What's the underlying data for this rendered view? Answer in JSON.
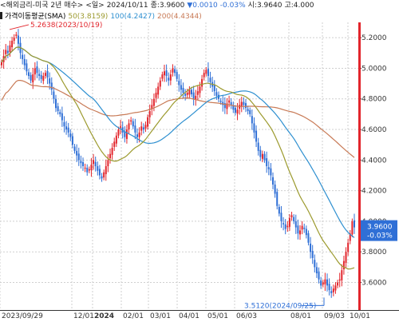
{
  "header": {
    "instrument": "<해외금리-미국 2년 매수>",
    "period": "<일>",
    "date": "2024/10/11",
    "close_label": "종:3.9600",
    "change": "▼0.0010",
    "change_pct": "-0.03%",
    "open_label": "시:3.9640",
    "high_label": "고:4.000"
  },
  "legend": {
    "title": "가격이동평균(SMA)",
    "ma50": "50(3.8159)",
    "ma100": "100(4.2427)",
    "ma200": "200(4.4344)"
  },
  "colors": {
    "up": "#e2252c",
    "down": "#2f6fd6",
    "ma50": "#9c9a2e",
    "ma100": "#2d8fd0",
    "ma200": "#c87a56",
    "price_box": "#2f6fd6",
    "grid": "#cfcfcf",
    "high_annot": "#e2252c",
    "low_annot": "#2f6fd6"
  },
  "chart_data": {
    "type": "candlestick",
    "title": "",
    "ylim": [
      3.42,
      5.3
    ],
    "y_ticks": [
      "5.2000",
      "5.0000",
      "4.8000",
      "4.6000",
      "4.4000",
      "4.2000",
      "4.0000",
      "3.8000",
      "3.6000"
    ],
    "x_ticks": [
      "2023/09/29",
      "12/01",
      "2024",
      "02/01",
      "03/01",
      "04/01",
      "05/01",
      "06/03",
      "08/01",
      "09/03",
      "10/01"
    ],
    "current_price": "3.9600",
    "current_change": "-0.03%",
    "annotations": {
      "high": "5.2638(2023/10/19)",
      "low": "3.5120(2024/09/25)"
    },
    "close_series": [
      5.04,
      5.08,
      5.12,
      5.1,
      5.15,
      5.18,
      5.2,
      5.22,
      5.16,
      5.1,
      5.06,
      5.02,
      4.98,
      4.95,
      4.92,
      4.96,
      5.0,
      4.97,
      4.95,
      4.93,
      4.95,
      4.97,
      4.94,
      4.9,
      4.86,
      4.8,
      4.74,
      4.72,
      4.7,
      4.66,
      4.62,
      4.6,
      4.58,
      4.55,
      4.5,
      4.46,
      4.43,
      4.4,
      4.38,
      4.36,
      4.35,
      4.32,
      4.34,
      4.37,
      4.4,
      4.36,
      4.33,
      4.3,
      4.28,
      4.32,
      4.36,
      4.4,
      4.44,
      4.48,
      4.52,
      4.56,
      4.6,
      4.62,
      4.58,
      4.55,
      4.6,
      4.64,
      4.66,
      4.62,
      4.58,
      4.55,
      4.58,
      4.62,
      4.6,
      4.63,
      4.68,
      4.72,
      4.76,
      4.8,
      4.84,
      4.88,
      4.92,
      4.96,
      4.98,
      4.95,
      4.92,
      4.96,
      5.0,
      4.97,
      4.93,
      4.89,
      4.86,
      4.84,
      4.82,
      4.84,
      4.86,
      4.83,
      4.8,
      4.82,
      4.85,
      4.88,
      4.93,
      4.97,
      4.99,
      4.95,
      4.91,
      4.88,
      4.85,
      4.82,
      4.8,
      4.78,
      4.76,
      4.74,
      4.77,
      4.79,
      4.76,
      4.73,
      4.71,
      4.73,
      4.76,
      4.78,
      4.76,
      4.74,
      4.72,
      4.7,
      4.64,
      4.58,
      4.52,
      4.46,
      4.42,
      4.44,
      4.4,
      4.36,
      4.34,
      4.3,
      4.24,
      4.18,
      4.1,
      4.05,
      4.0,
      3.98,
      3.95,
      3.97,
      4.02,
      4.04,
      4.0,
      3.96,
      3.92,
      3.94,
      3.97,
      3.95,
      3.91,
      3.86,
      3.8,
      3.76,
      3.7,
      3.66,
      3.62,
      3.58,
      3.6,
      3.62,
      3.58,
      3.55,
      3.53,
      3.56,
      3.58,
      3.6,
      3.62,
      3.68,
      3.74,
      3.8,
      3.86,
      3.92,
      4.0,
      3.96
    ]
  }
}
